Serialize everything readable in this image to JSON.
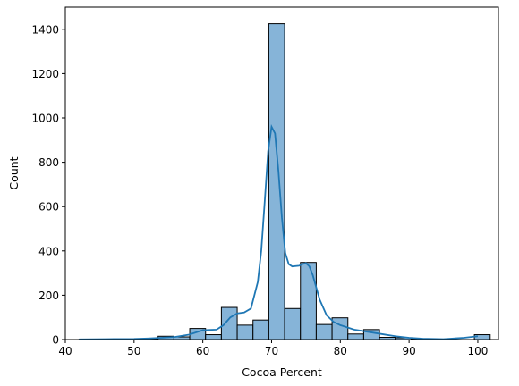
{
  "chart_data": {
    "type": "histogram",
    "xlabel": "Cocoa Percent",
    "ylabel": "Count",
    "xlim": [
      40.0,
      103.0
    ],
    "ylim": [
      0,
      1500
    ],
    "xticks": [
      40,
      50,
      60,
      70,
      80,
      90,
      100
    ],
    "yticks": [
      0,
      200,
      400,
      600,
      800,
      1000,
      1200,
      1400
    ],
    "xtick_labels": [
      "40",
      "50",
      "60",
      "70",
      "80",
      "90",
      "100"
    ],
    "ytick_labels": [
      "0",
      "200",
      "400",
      "600",
      "800",
      "1000",
      "1200",
      "1400"
    ],
    "bins": [
      {
        "x0": 42.0,
        "x1": 44.3,
        "count": 1
      },
      {
        "x0": 44.3,
        "x1": 46.6,
        "count": 0
      },
      {
        "x0": 46.6,
        "x1": 48.9,
        "count": 0
      },
      {
        "x0": 48.9,
        "x1": 51.2,
        "count": 0
      },
      {
        "x0": 51.2,
        "x1": 53.5,
        "count": 2
      },
      {
        "x0": 53.5,
        "x1": 55.8,
        "count": 15
      },
      {
        "x0": 55.8,
        "x1": 58.1,
        "count": 12
      },
      {
        "x0": 58.1,
        "x1": 60.4,
        "count": 50
      },
      {
        "x0": 60.4,
        "x1": 62.7,
        "count": 22
      },
      {
        "x0": 62.7,
        "x1": 65.0,
        "count": 145
      },
      {
        "x0": 65.0,
        "x1": 67.3,
        "count": 65
      },
      {
        "x0": 67.3,
        "x1": 69.6,
        "count": 88
      },
      {
        "x0": 69.6,
        "x1": 71.9,
        "count": 1425
      },
      {
        "x0": 71.9,
        "x1": 74.2,
        "count": 140
      },
      {
        "x0": 74.2,
        "x1": 76.5,
        "count": 348
      },
      {
        "x0": 76.5,
        "x1": 78.8,
        "count": 68
      },
      {
        "x0": 78.8,
        "x1": 81.1,
        "count": 98
      },
      {
        "x0": 81.1,
        "x1": 83.4,
        "count": 25
      },
      {
        "x0": 83.4,
        "x1": 85.7,
        "count": 45
      },
      {
        "x0": 85.7,
        "x1": 88.0,
        "count": 10
      },
      {
        "x0": 88.0,
        "x1": 90.3,
        "count": 8
      },
      {
        "x0": 90.3,
        "x1": 92.6,
        "count": 2
      },
      {
        "x0": 92.6,
        "x1": 94.9,
        "count": 0
      },
      {
        "x0": 94.9,
        "x1": 97.2,
        "count": 0
      },
      {
        "x0": 97.2,
        "x1": 99.5,
        "count": 0
      },
      {
        "x0": 99.5,
        "x1": 101.8,
        "count": 22
      }
    ],
    "kde": {
      "x": [
        42,
        46,
        50,
        52,
        54,
        56,
        58,
        60,
        62,
        63,
        64,
        65,
        66,
        67,
        68,
        68.5,
        69,
        69.5,
        70,
        70.5,
        71,
        71.5,
        72,
        72.5,
        73,
        74,
        74.5,
        75,
        75.5,
        76,
        77,
        78,
        79,
        80,
        81,
        82,
        84,
        86,
        88,
        90,
        92,
        95,
        98,
        100
      ],
      "y": [
        1,
        2,
        3,
        5,
        8,
        12,
        22,
        42,
        45,
        65,
        100,
        118,
        122,
        140,
        260,
        400,
        620,
        850,
        960,
        930,
        760,
        550,
        390,
        340,
        330,
        333,
        340,
        345,
        330,
        290,
        180,
        110,
        80,
        65,
        55,
        45,
        35,
        25,
        15,
        8,
        4,
        2,
        8,
        15
      ]
    },
    "colors": {
      "bar_fill": "#86b4d8",
      "bar_edge": "#000000",
      "kde_line": "#1f77b4"
    },
    "grid": false,
    "legend": "none"
  }
}
